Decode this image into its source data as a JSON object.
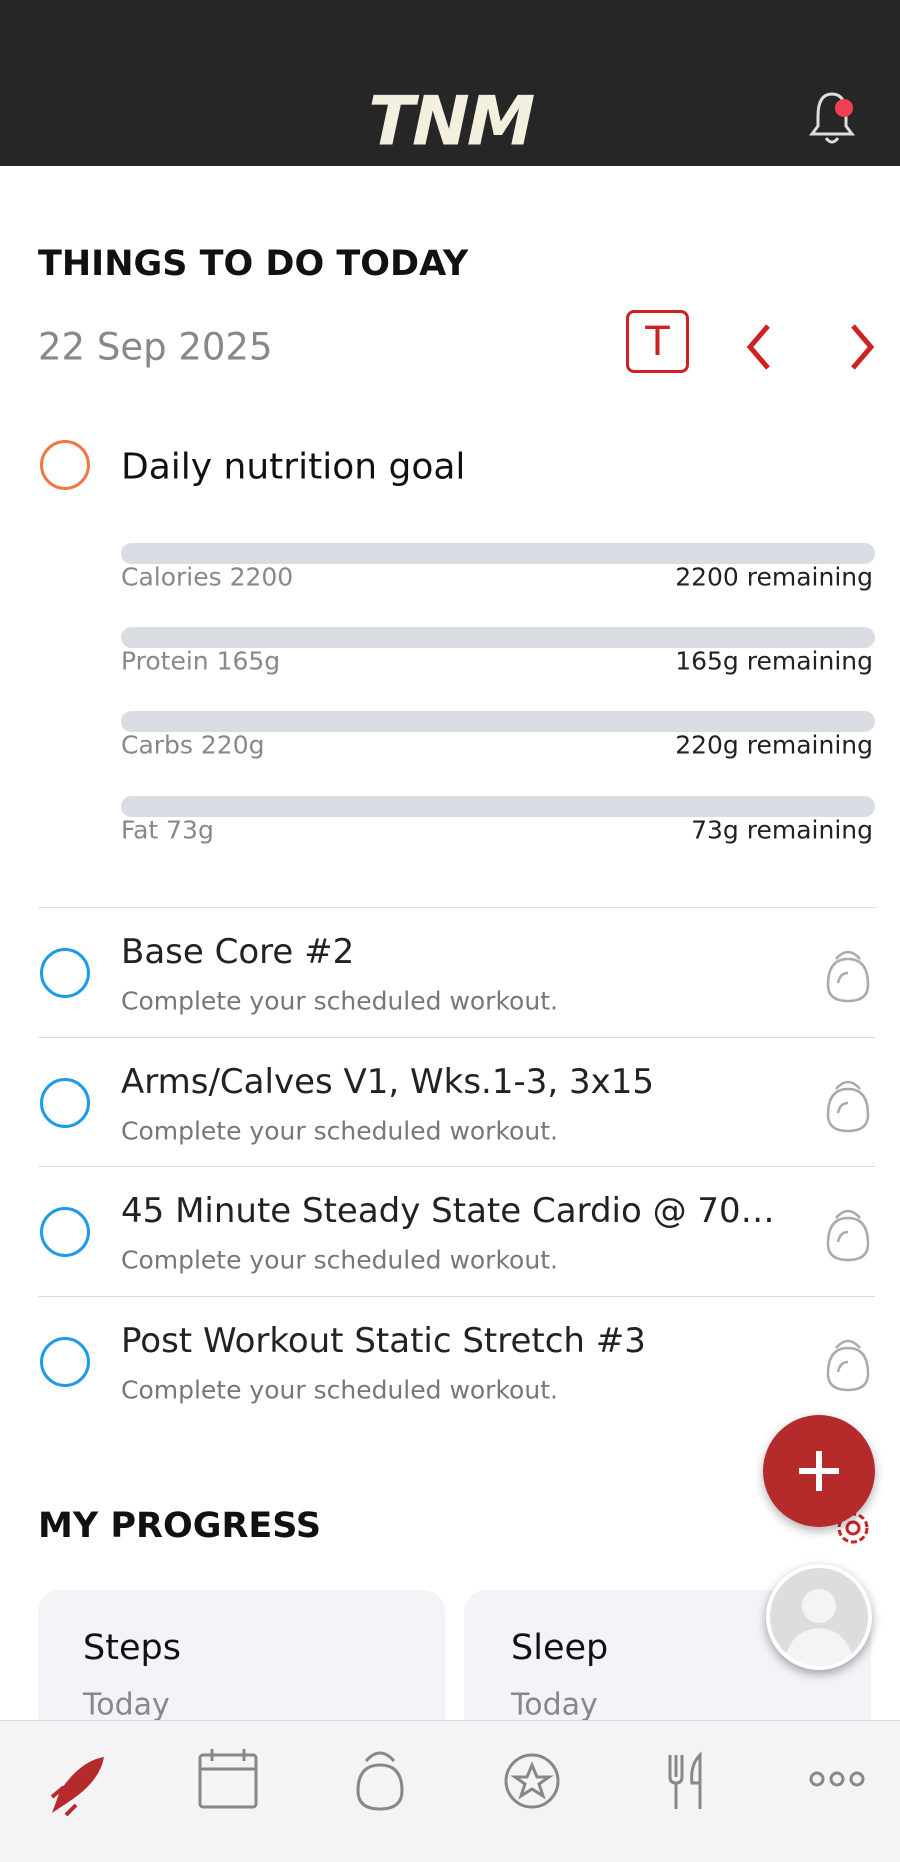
{
  "header": {
    "logo": "TNM"
  },
  "today": {
    "title": "THINGS TO DO TODAY",
    "date": "22 Sep 2025",
    "today_button": "T",
    "nutrition": {
      "title": "Daily nutrition goal",
      "macros": [
        {
          "label": "Calories 2200",
          "remaining": "2200 remaining"
        },
        {
          "label": "Protein 165g",
          "remaining": "165g remaining"
        },
        {
          "label": "Carbs 220g",
          "remaining": "220g remaining"
        },
        {
          "label": "Fat 73g",
          "remaining": "73g remaining"
        }
      ]
    },
    "workouts": [
      {
        "title": "Base Core #2",
        "subtitle": "Complete your scheduled workout."
      },
      {
        "title": "Arms/Calves V1, Wks.1-3, 3x15",
        "subtitle": "Complete your scheduled workout."
      },
      {
        "title": "45 Minute Steady State Cardio @ 70…",
        "subtitle": "Complete your scheduled workout."
      },
      {
        "title": "Post Workout Static Stretch #3",
        "subtitle": "Complete your scheduled workout."
      }
    ]
  },
  "progress": {
    "title": "MY PROGRESS",
    "cards": [
      {
        "title": "Steps",
        "subtitle": "Today"
      },
      {
        "title": "Sleep",
        "subtitle": "Today"
      }
    ]
  }
}
